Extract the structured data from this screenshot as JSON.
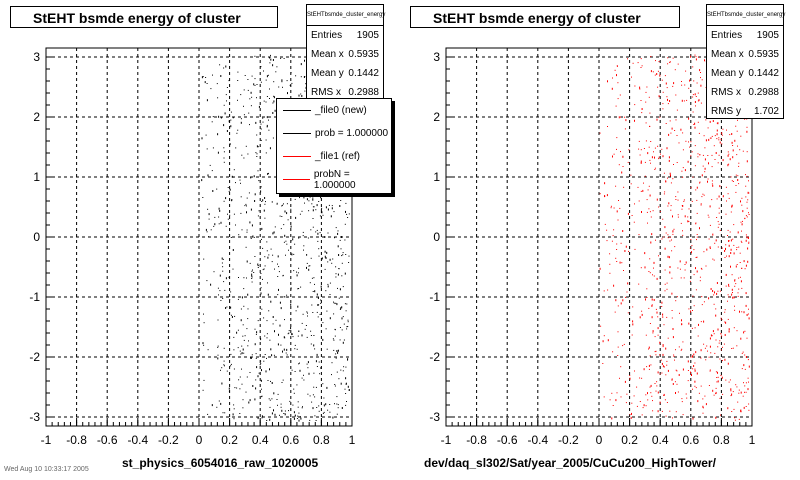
{
  "chart_data": [
    {
      "type": "scatter",
      "title": "StEHT bsmde energy of cluster",
      "xlabel": "st_physics_6054016_raw_1020005",
      "ylabel": "",
      "xlim": [
        -1,
        1
      ],
      "ylim": [
        -3.15,
        3.15
      ],
      "xticks": [
        "-1",
        "-0.8",
        "-0.6",
        "-0.4",
        "-0.2",
        "0",
        "0.2",
        "0.4",
        "0.6",
        "0.8",
        "1"
      ],
      "yticks": [
        "3",
        "2",
        "1",
        "0",
        "-1",
        "-2",
        "-3"
      ],
      "grid": true,
      "marker_color": "#000000",
      "point_x_range": [
        0,
        0.98
      ],
      "stats": {
        "header": "StEHTbsmde_cluster_energy",
        "rows": [
          {
            "label": "Entries",
            "value": "1905"
          },
          {
            "label": "Mean x",
            "value": "0.5935"
          },
          {
            "label": "Mean y",
            "value": "0.1442"
          },
          {
            "label": "RMS x",
            "value": "0.2988"
          }
        ]
      },
      "legend": {
        "placement": "top-right",
        "entries": [
          {
            "label": "_file0 (new)",
            "color": "#000000"
          },
          {
            "label": "prob = 1.000000",
            "color": "#000000"
          },
          {
            "label": "_file1 (ref)",
            "color": "#ff0000"
          },
          {
            "label": "probN = 1.000000",
            "color": "#ff0000"
          }
        ]
      }
    },
    {
      "type": "scatter",
      "title": "StEHT bsmde energy of cluster",
      "xlabel": "dev/daq_sl302/Sat/year_2005/CuCu200_HighTower/",
      "ylabel": "",
      "xlim": [
        -1,
        1
      ],
      "ylim": [
        -3.15,
        3.15
      ],
      "xticks": [
        "-1",
        "-0.8",
        "-0.6",
        "-0.4",
        "-0.2",
        "0",
        "0.2",
        "0.4",
        "0.6",
        "0.8",
        "1"
      ],
      "yticks": [
        "3",
        "2",
        "1",
        "0",
        "-1",
        "-2",
        "-3"
      ],
      "grid": true,
      "marker_color": "#ff0000",
      "point_x_range": [
        0,
        0.98
      ],
      "stats": {
        "header": "StEHTbsmde_cluster_energy",
        "rows": [
          {
            "label": "Entries",
            "value": "1905"
          },
          {
            "label": "Mean x",
            "value": "0.5935"
          },
          {
            "label": "Mean y",
            "value": "0.1442"
          },
          {
            "label": "RMS x",
            "value": "0.2988"
          },
          {
            "label": "RMS y",
            "value": "1.702"
          }
        ]
      }
    }
  ],
  "footnote": "Wed Aug 10 10:33:17 2005"
}
